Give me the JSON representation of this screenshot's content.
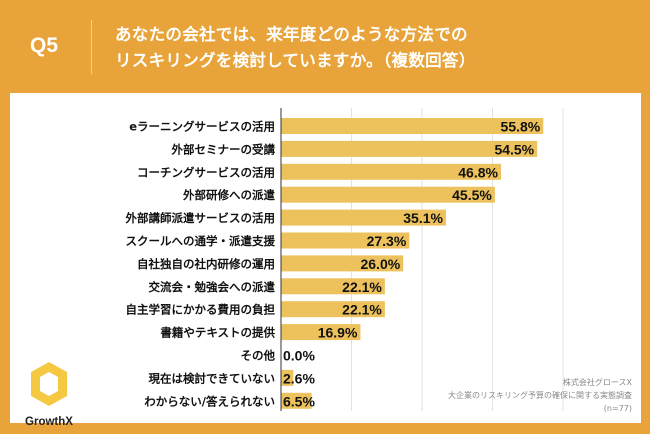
{
  "header": {
    "q": "Q5",
    "title_line1": "あなたの会社では、来年度どのような方法での",
    "title_line2": "リスキリングを検討していますか。（複数回答）"
  },
  "logo": {
    "text": "GrowthX"
  },
  "source": {
    "company": "株式会社グロースX",
    "survey": "大企業のリスキリング予算の確保に関する実態調査",
    "n": "(n=77)"
  },
  "colors": {
    "header": "#E8A43A",
    "bar": "#EDC25C"
  },
  "chart_data": {
    "type": "bar",
    "orientation": "horizontal",
    "xlim": [
      0,
      60
    ],
    "grid": true,
    "unit": "%",
    "categories": [
      "eラーニングサービスの活用",
      "外部セミナーの受講",
      "コーチングサービスの活用",
      "外部研修への派遣",
      "外部講師派遣サービスの活用",
      "スクールへの通学・派遣支援",
      "自社独自の社内研修の運用",
      "交流会・勉強会への派遣",
      "自主学習にかかる費用の負担",
      "書籍やテキストの提供",
      "その他",
      "現在は検討できていない",
      "わからない/答えられない"
    ],
    "values": [
      55.8,
      54.5,
      46.8,
      45.5,
      35.1,
      27.3,
      26.0,
      22.1,
      22.1,
      16.9,
      0.0,
      2.6,
      6.5
    ],
    "labels": [
      "55.8%",
      "54.5%",
      "46.8%",
      "45.5%",
      "35.1%",
      "27.3%",
      "26.0%",
      "22.1%",
      "22.1%",
      "16.9%",
      "0.0%",
      "2.6%",
      "6.5%"
    ]
  }
}
